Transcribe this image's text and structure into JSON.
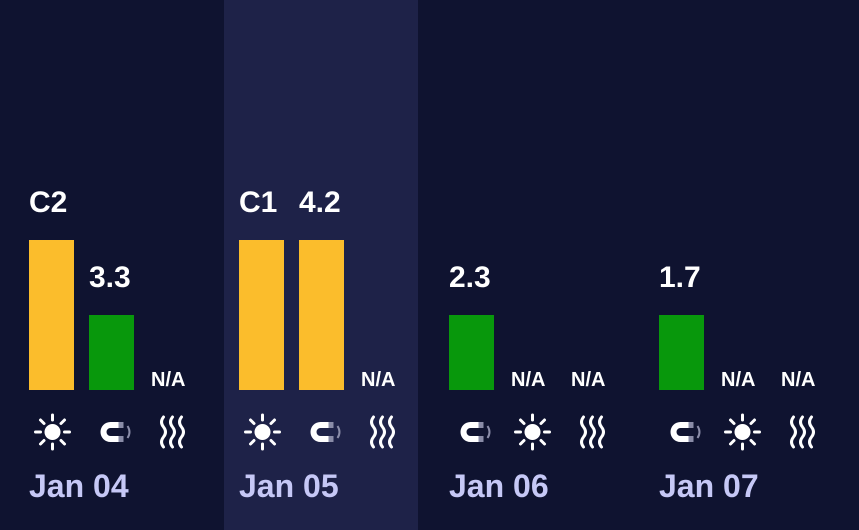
{
  "days": [
    {
      "date": "Jan 04",
      "selected": false,
      "items": [
        {
          "kind": "sun",
          "label": "C2",
          "level": 2,
          "color": "#fbbd2c"
        },
        {
          "kind": "magnet",
          "label": "3.3",
          "level": 1,
          "color": "#08980c"
        },
        {
          "kind": "waves",
          "label": "N/A"
        }
      ]
    },
    {
      "date": "Jan 05",
      "selected": true,
      "items": [
        {
          "kind": "sun",
          "label": "C1",
          "level": 2,
          "color": "#fbbd2c"
        },
        {
          "kind": "magnet",
          "label": "4.2",
          "level": 2,
          "color": "#fbbd2c"
        },
        {
          "kind": "waves",
          "label": "N/A"
        }
      ]
    },
    {
      "date": "Jan 06",
      "selected": false,
      "items": [
        {
          "kind": "magnet",
          "label": "2.3",
          "level": 1,
          "color": "#08980c"
        },
        {
          "kind": "sun",
          "label": "N/A"
        },
        {
          "kind": "waves",
          "label": "N/A"
        }
      ]
    },
    {
      "date": "Jan 07",
      "selected": false,
      "items": [
        {
          "kind": "magnet",
          "label": "1.7",
          "level": 1,
          "color": "#08980c"
        },
        {
          "kind": "sun",
          "label": "N/A"
        },
        {
          "kind": "waves",
          "label": "N/A"
        }
      ]
    }
  ]
}
